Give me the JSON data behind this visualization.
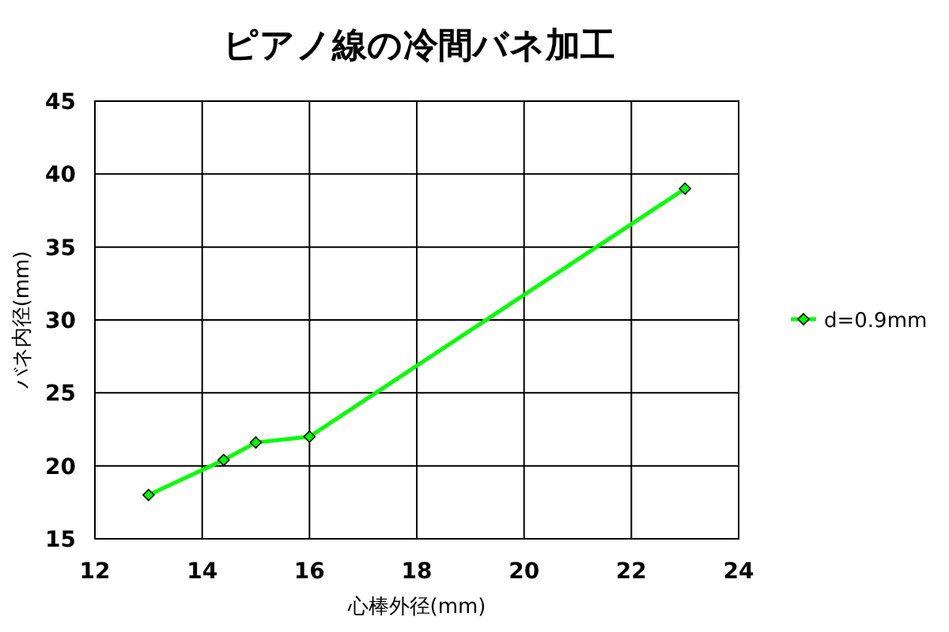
{
  "chart_data": {
    "type": "line",
    "title": "ピアノ線の冷間バネ加工",
    "xlabel": "心棒外径(mm)",
    "ylabel": "バネ内径(mm)",
    "x": [
      13,
      14.4,
      15,
      16,
      23
    ],
    "series": [
      {
        "name": "d=0.9mm",
        "color": "#00ff00",
        "values": [
          18,
          20.4,
          21.6,
          22,
          39
        ]
      }
    ],
    "xlim": [
      12,
      24
    ],
    "xticks": [
      12,
      14,
      16,
      18,
      20,
      22,
      24
    ],
    "ylim": [
      15,
      45
    ],
    "yticks": [
      15,
      20,
      25,
      30,
      35,
      40,
      45
    ],
    "grid": true,
    "legend": "right",
    "marker": "diamond",
    "line_style": "solid"
  }
}
